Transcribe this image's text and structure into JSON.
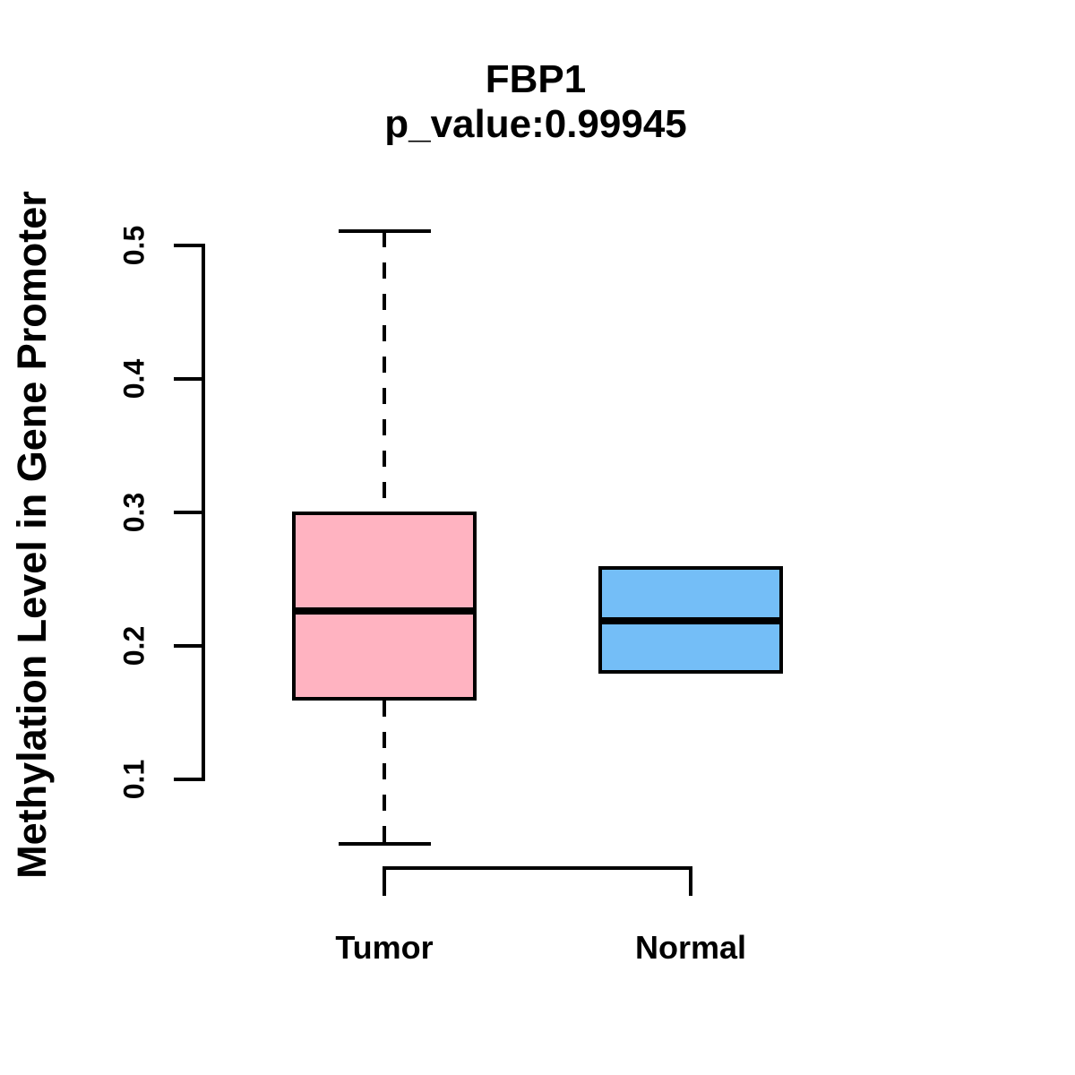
{
  "title": {
    "line1": "FBP1",
    "line2": "p_value:0.99945"
  },
  "y_axis": {
    "label": "Methylation Level in Gene Promoter",
    "tick_labels": [
      "0.1",
      "0.2",
      "0.3",
      "0.4",
      "0.5"
    ]
  },
  "x_axis": {
    "categories": [
      "Tumor",
      "Normal"
    ]
  },
  "colors": {
    "tumor_fill": "#FFB3C1",
    "normal_fill": "#74BEF7",
    "line_color": "#000000",
    "background": "#FFFFFF"
  },
  "chart_data": {
    "type": "boxplot",
    "title": "FBP1",
    "subtitle": "p_value:0.99945",
    "ylabel": "Methylation Level in Gene Promoter",
    "categories": [
      "Tumor",
      "Normal"
    ],
    "y_ticks": [
      0.1,
      0.2,
      0.3,
      0.4,
      0.5
    ],
    "ylim": [
      0.05,
      0.52
    ],
    "grid": false,
    "legend": "none",
    "series": [
      {
        "name": "Tumor",
        "fill": "#FFB3C1",
        "whisker_low": 0.052,
        "q1": 0.159,
        "median": 0.226,
        "q3": 0.301,
        "whisker_high": 0.511
      },
      {
        "name": "Normal",
        "fill": "#74BEF7",
        "whisker_low": 0.179,
        "q1": 0.179,
        "median": 0.219,
        "q3": 0.26,
        "whisker_high": 0.26
      }
    ]
  }
}
